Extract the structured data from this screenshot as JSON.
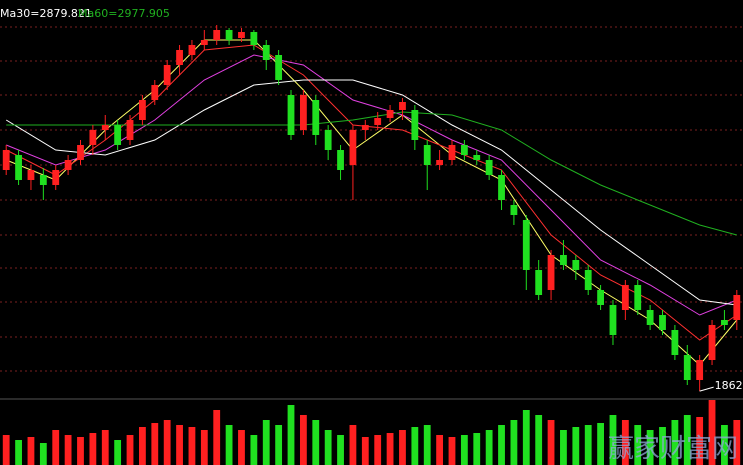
{
  "chart_data": {
    "type": "candlestick",
    "legend": [
      "Ma30=2879.821",
      "Ma60=2977.905"
    ],
    "watermark": "赢家财富网",
    "xlim": [
      -0.5,
      59.5
    ],
    "ylim": [
      1800,
      4600
    ],
    "grid": true,
    "up_color": "#ff2020",
    "down_color": "#20e020",
    "open": [
      3410,
      3515,
      3340,
      3375,
      3305,
      3410,
      3480,
      3585,
      3690,
      3725,
      3620,
      3760,
      3900,
      4005,
      4145,
      4215,
      4285,
      4320,
      4390,
      4334,
      4376,
      4285,
      4215,
      3935,
      3690,
      3900,
      3690,
      3550,
      3445,
      3690,
      3725,
      3774,
      3830,
      3830,
      3585,
      3445,
      3480,
      3585,
      3515,
      3480,
      3375,
      3165,
      3060,
      2710,
      2570,
      2815,
      2780,
      2710,
      2570,
      2465,
      2430,
      2605,
      2430,
      2395,
      2290,
      2115,
      1940,
      2080,
      2360,
      2360
    ],
    "close": [
      3550,
      3340,
      3410,
      3305,
      3410,
      3480,
      3585,
      3690,
      3725,
      3585,
      3760,
      3900,
      4005,
      4145,
      4250,
      4285,
      4320,
      4390,
      4320,
      4376,
      4285,
      4180,
      4040,
      3655,
      3935,
      3655,
      3550,
      3410,
      3690,
      3725,
      3774,
      3830,
      3886,
      3620,
      3445,
      3480,
      3585,
      3515,
      3480,
      3375,
      3200,
      3095,
      2710,
      2535,
      2815,
      2745,
      2710,
      2570,
      2465,
      2255,
      2605,
      2430,
      2325,
      2290,
      2115,
      1940,
      2080,
      2325,
      2325,
      2535
    ],
    "high": [
      3585,
      3550,
      3445,
      3424,
      3445,
      3515,
      3620,
      3725,
      3795,
      3760,
      3795,
      3935,
      4040,
      4180,
      4285,
      4320,
      4390,
      4425,
      4404,
      4404,
      4390,
      4320,
      4250,
      3970,
      3970,
      3935,
      3725,
      3585,
      3725,
      3760,
      3816,
      3865,
      3914,
      3865,
      3620,
      3550,
      3620,
      3620,
      3550,
      3515,
      3410,
      3200,
      3095,
      2780,
      2850,
      2920,
      2815,
      2745,
      2605,
      2500,
      2640,
      2640,
      2465,
      2430,
      2325,
      2185,
      2115,
      2360,
      2430,
      2570
    ],
    "low": [
      3375,
      3305,
      3270,
      3200,
      3270,
      3375,
      3445,
      3515,
      3620,
      3550,
      3585,
      3725,
      3865,
      3970,
      4075,
      4180,
      4250,
      4285,
      4285,
      4306,
      4250,
      4110,
      4005,
      3620,
      3655,
      3585,
      3480,
      3340,
      3200,
      3620,
      3690,
      3746,
      3760,
      3550,
      3270,
      3410,
      3445,
      3480,
      3445,
      3340,
      3130,
      3025,
      2570,
      2500,
      2500,
      2710,
      2640,
      2535,
      2430,
      2185,
      2360,
      2395,
      2290,
      2255,
      2080,
      1905,
      1862,
      2045,
      2290,
      2290
    ],
    "volume": {
      "ylim": [
        0,
        70
      ],
      "values": [
        30,
        25,
        28,
        22,
        35,
        30,
        28,
        32,
        35,
        25,
        30,
        38,
        42,
        45,
        40,
        38,
        35,
        55,
        40,
        35,
        30,
        45,
        40,
        60,
        50,
        45,
        35,
        30,
        40,
        28,
        30,
        32,
        35,
        38,
        40,
        30,
        28,
        30,
        32,
        35,
        40,
        45,
        55,
        50,
        45,
        35,
        38,
        40,
        42,
        50,
        45,
        40,
        35,
        38,
        45,
        50,
        48,
        65,
        40,
        45
      ]
    },
    "ma_x": [
      0,
      4,
      8,
      12,
      16,
      20,
      24,
      28,
      32,
      36,
      40,
      44,
      48,
      52,
      56,
      59
    ],
    "ma_series": [
      {
        "color": "#ffff66",
        "values": [
          3480,
          3340,
          3690,
          3970,
          4320,
          4320,
          3970,
          3550,
          3795,
          3515,
          3340,
          2815,
          2570,
          2360,
          2045,
          2360
        ]
      },
      {
        "color": "#ff3030",
        "values": [
          3550,
          3375,
          3620,
          3900,
          4250,
          4285,
          4075,
          3725,
          3690,
          3550,
          3410,
          2955,
          2675,
          2500,
          2220,
          2395
        ]
      },
      {
        "color": "#e040e0",
        "values": [
          3585,
          3445,
          3550,
          3760,
          4040,
          4215,
          4145,
          3900,
          3795,
          3620,
          3480,
          3130,
          2780,
          2605,
          2395,
          2500
        ]
      },
      {
        "color": "#ffffff",
        "values": [
          3760,
          3550,
          3515,
          3620,
          3830,
          4005,
          4040,
          4040,
          3935,
          3725,
          3550,
          3270,
          2990,
          2745,
          2500,
          2465
        ]
      },
      {
        "color": "#20b020",
        "values": [
          3725,
          3725,
          3725,
          3725,
          3725,
          3725,
          3725,
          3760,
          3816,
          3795,
          3690,
          3480,
          3305,
          3165,
          3025,
          2955
        ]
      }
    ]
  }
}
